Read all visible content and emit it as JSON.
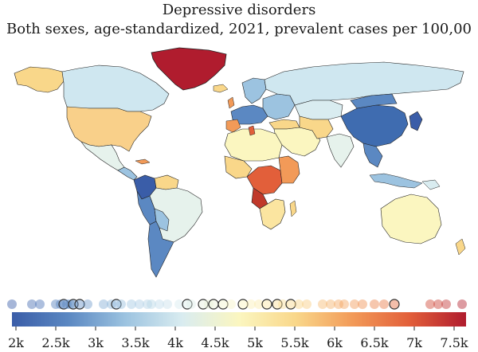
{
  "map": {
    "title": "Depressive disorders",
    "subtitle": "Both sexes, age-standardized, 2021, prevalent cases per 100,00"
  },
  "legend": {
    "ticks": [
      "2k",
      "2.5k",
      "3k",
      "3.5k",
      "4k",
      "4.5k",
      "5k",
      "5.5k",
      "6k",
      "6.5k",
      "7k",
      "7.5k"
    ],
    "tick_values": [
      2000,
      2500,
      3000,
      3500,
      4000,
      4500,
      5000,
      5500,
      6000,
      6500,
      7000,
      7500
    ],
    "range": [
      1950,
      7650
    ],
    "gradient": [
      "#3a5da8",
      "#5b88c2",
      "#9cc3e0",
      "#d9ecf0",
      "#fbf6c0",
      "#f9d78a",
      "#f29a58",
      "#e25f3a",
      "#b01c2e"
    ]
  },
  "dist_values": [
    1950,
    2200,
    2300,
    2500,
    2560,
    2600,
    2640,
    2680,
    2720,
    2800,
    2900,
    3100,
    3200,
    3260,
    3320,
    3450,
    3550,
    3650,
    3700,
    3800,
    3900,
    4050,
    4150,
    4200,
    4350,
    4420,
    4480,
    4600,
    4700,
    4850,
    4950,
    5050,
    5150,
    5280,
    5350,
    5450,
    5550,
    5650,
    5850,
    5950,
    6050,
    6120,
    6250,
    6350,
    6500,
    6620,
    6750,
    7200,
    7300,
    7400,
    7600
  ],
  "dist_highlighted": [
    2600,
    2720,
    2800,
    3260,
    4150,
    4350,
    4480,
    4600,
    4850,
    5150,
    5280,
    5450,
    6750
  ]
}
